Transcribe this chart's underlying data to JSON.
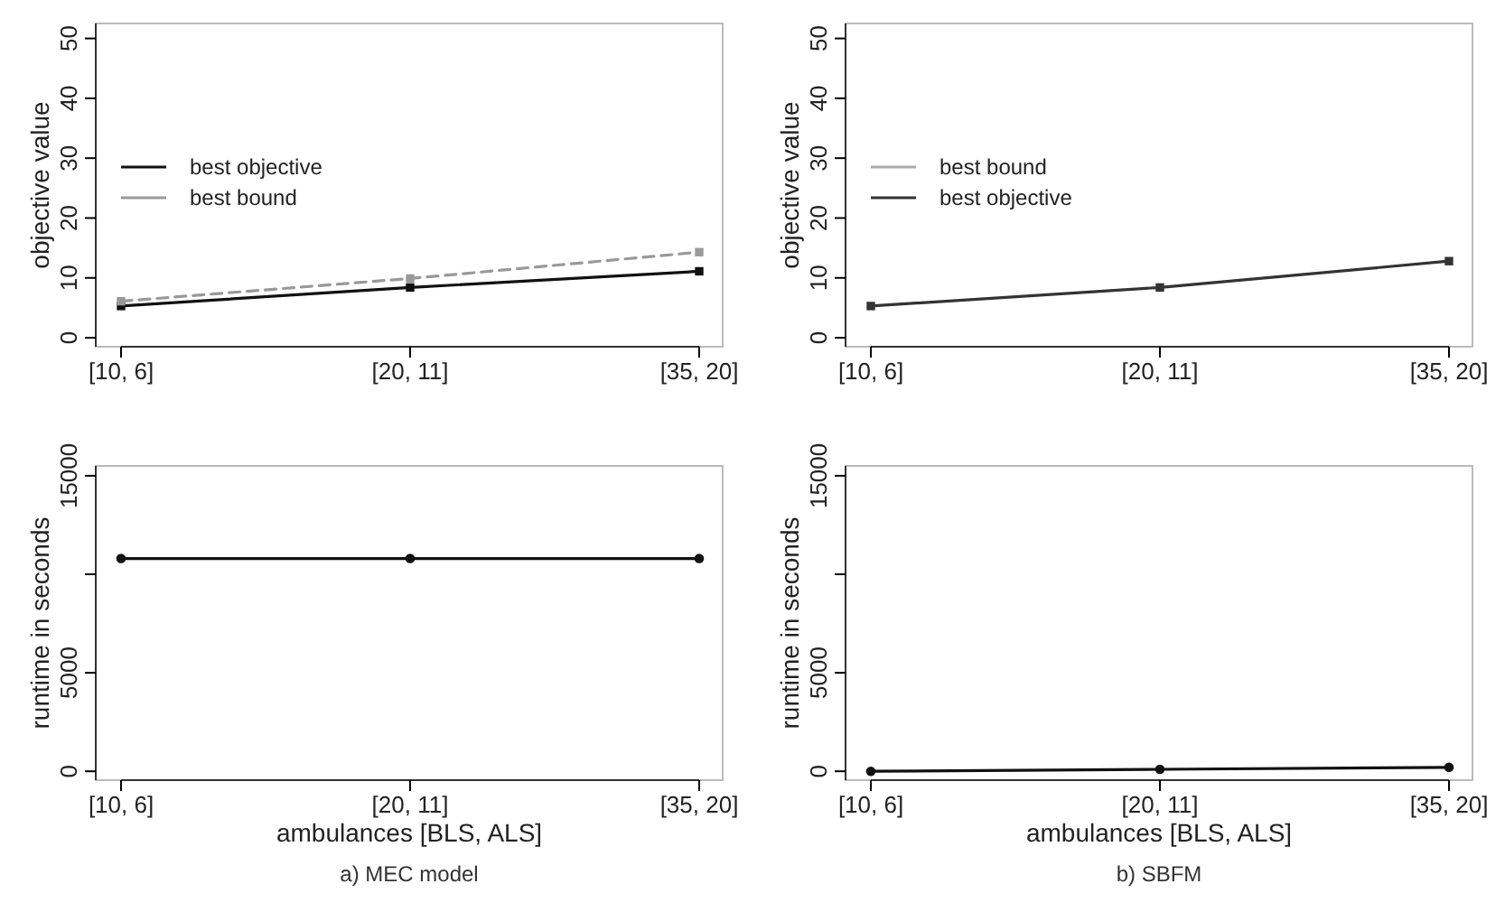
{
  "chart_data": [
    {
      "type": "line",
      "ylabel": "objective value",
      "categories": [
        "[10, 6]",
        "[20, 11]",
        "[35, 20]"
      ],
      "ylim": [
        -1.5,
        52.5
      ],
      "yticks": [
        0,
        10,
        20,
        30,
        40,
        50
      ],
      "legend": "left",
      "marker": "square",
      "series": [
        {
          "name": "best objective",
          "color": "#111111",
          "line_style": "solid",
          "values": [
            5.3,
            8.4,
            11.1
          ]
        },
        {
          "name": "best bound",
          "color": "#999999",
          "line_style": "dashed",
          "values": [
            6.1,
            9.9,
            14.3
          ]
        }
      ]
    },
    {
      "type": "line",
      "ylabel": "objective value",
      "categories": [
        "[10, 6]",
        "[20, 11]",
        "[35, 20]"
      ],
      "ylim": [
        -1.5,
        52.5
      ],
      "yticks": [
        0,
        10,
        20,
        30,
        40,
        50
      ],
      "legend": "left",
      "marker": "square",
      "series": [
        {
          "name": "best bound",
          "color": "#aaaaaa",
          "line_style": "solid",
          "values": [
            null,
            null,
            null
          ]
        },
        {
          "name": "best objective",
          "color": "#333333",
          "line_style": "solid",
          "values": [
            5.3,
            8.4,
            12.8
          ]
        }
      ]
    },
    {
      "type": "line",
      "ylabel": "runtime in seconds",
      "xlabel": "ambulances [BLS, ALS]",
      "categories": [
        "[10, 6]",
        "[20, 11]",
        "[35, 20]"
      ],
      "ylim": [
        -450,
        15500
      ],
      "yticks": [
        0,
        5000,
        {
          "value": 10000,
          "label": null
        },
        15000
      ],
      "marker": "circle",
      "annotations": [
        "a) MEC model"
      ],
      "series": [
        {
          "color": "#111111",
          "line_style": "solid",
          "values": [
            10800,
            10800,
            10800
          ]
        }
      ]
    },
    {
      "type": "line",
      "ylabel": "runtime in seconds",
      "xlabel": "ambulances [BLS, ALS]",
      "categories": [
        "[10, 6]",
        "[20, 11]",
        "[35, 20]"
      ],
      "ylim": [
        -450,
        15500
      ],
      "yticks": [
        0,
        5000,
        {
          "value": 10000,
          "label": null
        },
        15000
      ],
      "marker": "circle",
      "annotations": [
        "b) SBFM"
      ],
      "series": [
        {
          "color": "#111111",
          "line_style": "solid",
          "values": [
            0,
            100,
            200
          ]
        }
      ]
    }
  ]
}
